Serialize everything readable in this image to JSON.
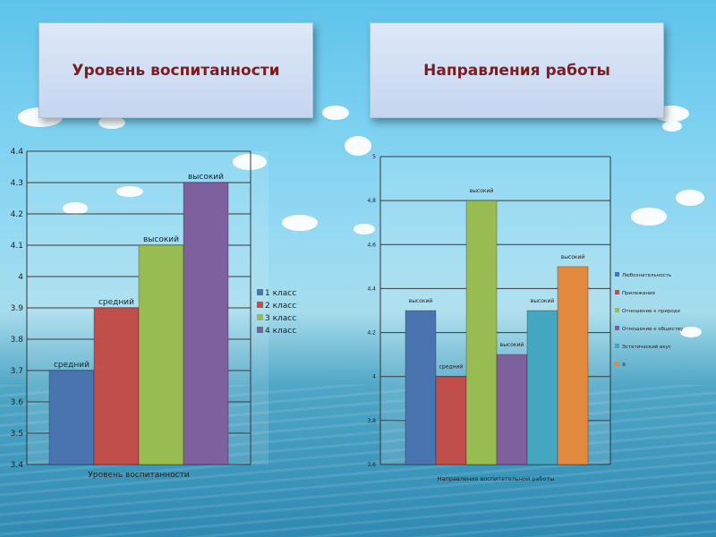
{
  "titles": {
    "left": "Уровень воспитанности",
    "right": "Направления работы"
  },
  "chart_data": [
    {
      "type": "bar",
      "xlabel": "Уровень воспитанности",
      "ylim": [
        3.4,
        4.4
      ],
      "yticks": [
        3.4,
        3.5,
        3.6,
        3.7,
        3.8,
        3.9,
        4,
        4.1,
        4.2,
        4.3,
        4.4
      ],
      "grid": true,
      "legend": "right",
      "series": [
        {
          "name": "1 класс",
          "value": 3.7,
          "label": "средний",
          "color": "#4a74b0"
        },
        {
          "name": "2 класс",
          "value": 3.9,
          "label": "средний",
          "color": "#c04e4b"
        },
        {
          "name": "3 класс",
          "value": 4.1,
          "label": "высокий",
          "color": "#98bb52"
        },
        {
          "name": "4 класс",
          "value": 4.3,
          "label": "высокий",
          "color": "#7f609f"
        }
      ]
    },
    {
      "type": "bar",
      "xlabel": "Направления воспитательной работы",
      "ylim": [
        3.6,
        5
      ],
      "yticks": [
        "3,6",
        "3,8",
        "4",
        "4,2",
        "4,4",
        "4,6",
        "4,8",
        "5"
      ],
      "grid": true,
      "legend": "right",
      "series": [
        {
          "name": "Любознательность",
          "value": 4.3,
          "label": "высокий",
          "color": "#4a74b0"
        },
        {
          "name": "Прилежание",
          "value": 4.0,
          "label": "средний",
          "color": "#c04e4b"
        },
        {
          "name": "Отношение к природе",
          "value": 4.8,
          "label": "высокий",
          "color": "#98bb52"
        },
        {
          "name": "Отношение к обществу",
          "value": 4.1,
          "label": "высокий",
          "color": "#7f609f"
        },
        {
          "name": "Эстетический вкус",
          "value": 4.3,
          "label": "высокий",
          "color": "#45a6c0"
        },
        {
          "name": "Я",
          "value": 4.5,
          "label": "высокий",
          "color": "#e08a3f"
        }
      ]
    }
  ]
}
